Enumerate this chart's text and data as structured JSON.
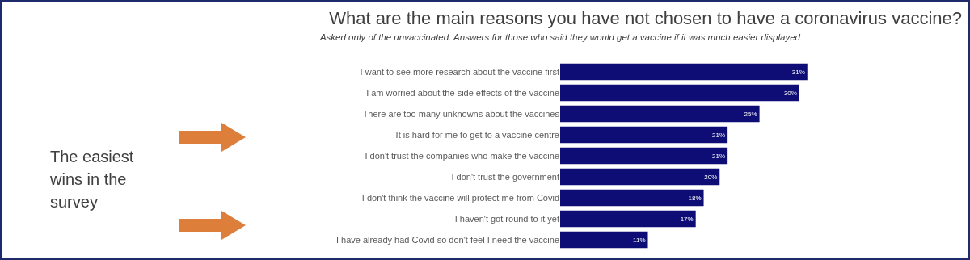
{
  "chart_data": {
    "type": "bar",
    "orientation": "horizontal",
    "title": "What are the main reasons you have not chosen to have a coronavirus vaccine?",
    "subtitle": "Asked only of the unvaccinated. Answers for those who said they would get a vaccine if it was much easier displayed",
    "categories": [
      "I want to see more research about the vaccine first",
      "I am worried about the side effects of the vaccine",
      "There are too many unknowns about the vaccines",
      "It is hard for me to get to a vaccine centre",
      "I don't trust the companies who make the vaccine",
      "I don't trust the government",
      "I don't think the vaccine will protect me from Covid",
      "I haven't got round to it yet",
      "I have already had Covid so don't feel I need the vaccine"
    ],
    "values": [
      31,
      30,
      25,
      21,
      21,
      20,
      18,
      17,
      11
    ],
    "value_labels": [
      "31%",
      "30%",
      "25%",
      "21%",
      "21%",
      "20%",
      "18%",
      "17%",
      "11%"
    ],
    "color": "#0d0d75",
    "annotations": [
      "The easiest wins in the survey"
    ]
  }
}
